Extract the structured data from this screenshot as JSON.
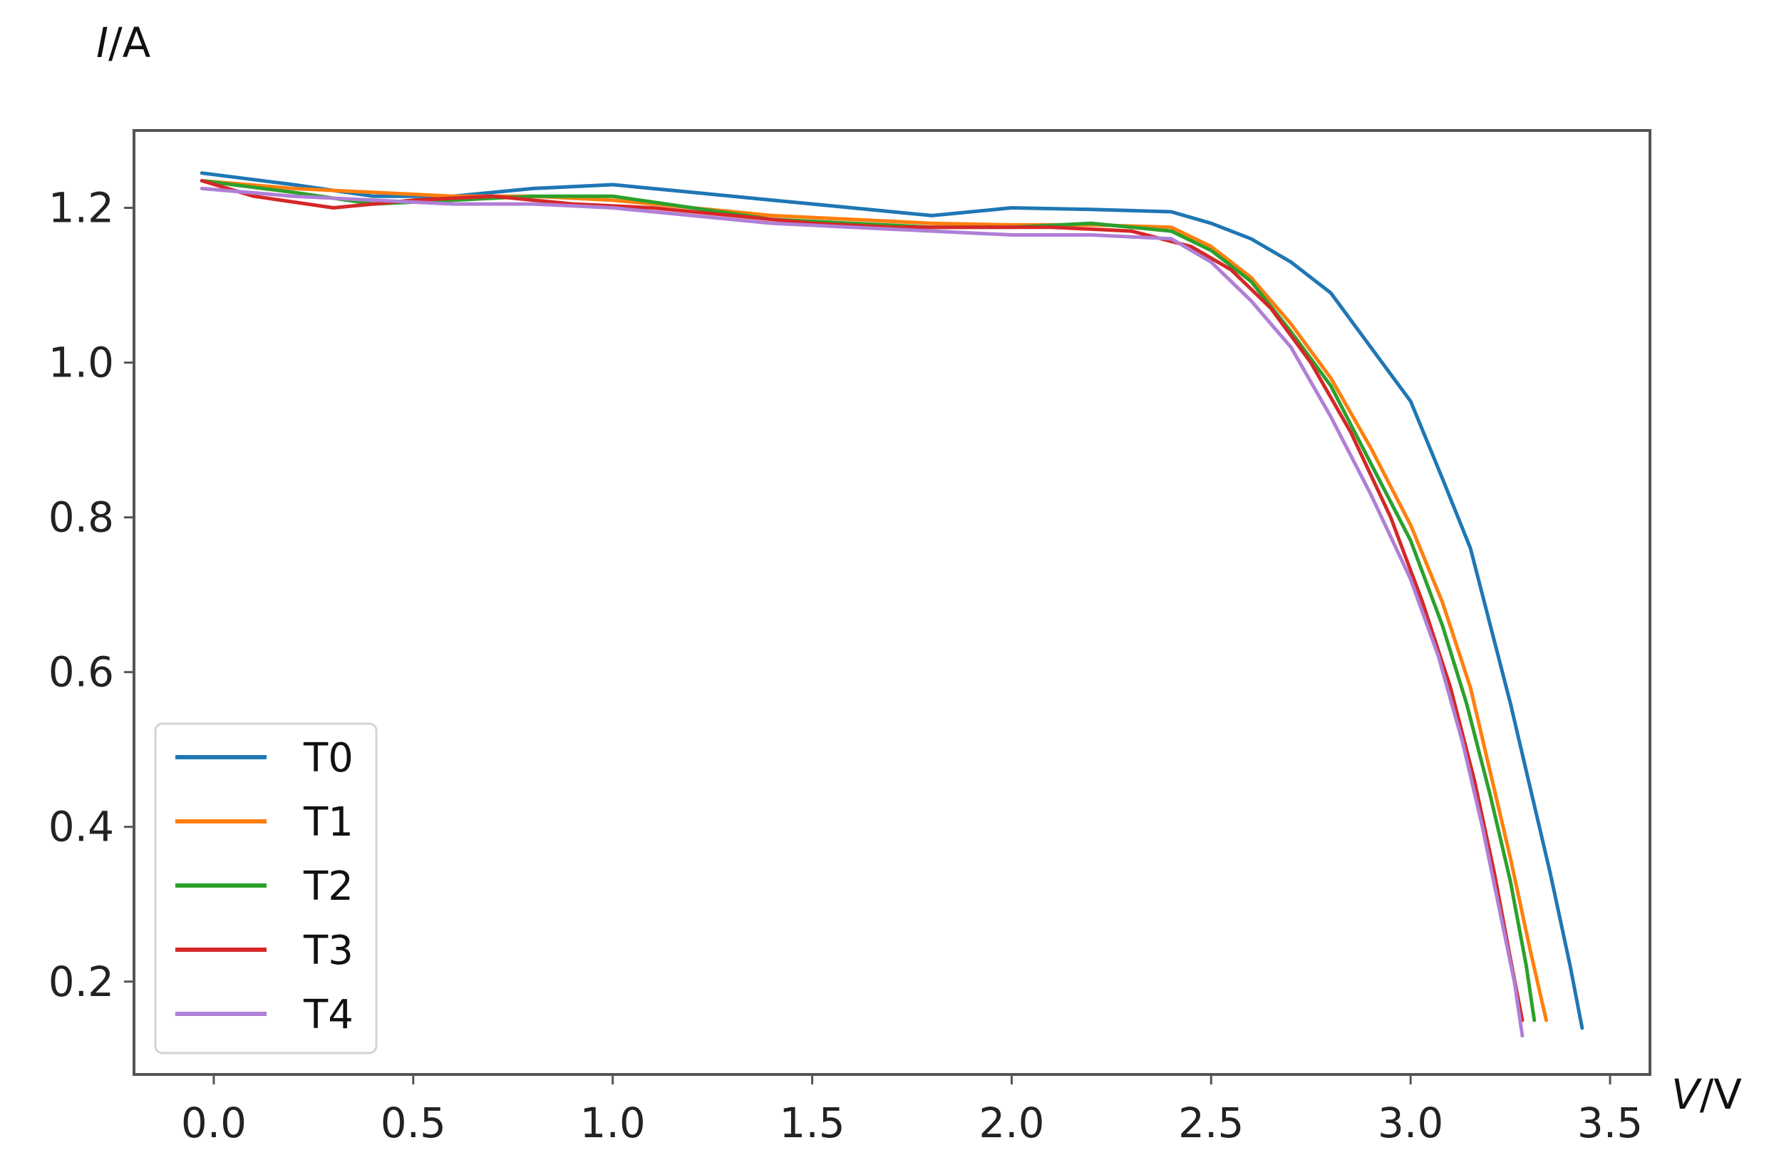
{
  "chart_data": {
    "type": "line",
    "title": "",
    "xlabel": {
      "symbol": "V",
      "unit": "/V"
    },
    "ylabel": {
      "symbol": "I",
      "unit": "/A"
    },
    "xlim": [
      -0.2,
      3.6
    ],
    "ylim": [
      0.08,
      1.3
    ],
    "xticks": [
      0.0,
      0.5,
      1.0,
      1.5,
      2.0,
      2.5,
      3.0,
      3.5
    ],
    "xtick_labels": [
      "0.0",
      "0.5",
      "1.0",
      "1.5",
      "2.0",
      "2.5",
      "3.0",
      "3.5"
    ],
    "yticks": [
      0.2,
      0.4,
      0.6,
      0.8,
      1.0,
      1.2
    ],
    "ytick_labels": [
      "0.2",
      "0.4",
      "0.6",
      "0.8",
      "1.0",
      "1.2"
    ],
    "grid": false,
    "legend_position": "lower-left",
    "series": [
      {
        "name": "T0",
        "color": "#1f77b4",
        "x": [
          -0.03,
          0.2,
          0.4,
          0.6,
          0.8,
          1.0,
          1.2,
          1.4,
          1.6,
          1.8,
          2.0,
          2.2,
          2.4,
          2.5,
          2.6,
          2.7,
          2.8,
          2.9,
          3.0,
          3.08,
          3.15,
          3.2,
          3.25,
          3.3,
          3.35,
          3.4,
          3.43
        ],
        "y": [
          1.245,
          1.23,
          1.215,
          1.215,
          1.225,
          1.23,
          1.22,
          1.21,
          1.2,
          1.19,
          1.2,
          1.198,
          1.195,
          1.18,
          1.16,
          1.13,
          1.09,
          1.02,
          0.95,
          0.85,
          0.76,
          0.66,
          0.56,
          0.45,
          0.34,
          0.22,
          0.14
        ]
      },
      {
        "name": "T1",
        "color": "#ff7f0e",
        "x": [
          -0.03,
          0.2,
          0.4,
          0.6,
          0.8,
          1.0,
          1.2,
          1.4,
          1.6,
          1.8,
          2.0,
          2.2,
          2.4,
          2.5,
          2.6,
          2.7,
          2.8,
          2.9,
          3.0,
          3.08,
          3.15,
          3.2,
          3.25,
          3.3,
          3.34
        ],
        "y": [
          1.235,
          1.225,
          1.22,
          1.215,
          1.215,
          1.21,
          1.2,
          1.19,
          1.185,
          1.18,
          1.178,
          1.178,
          1.175,
          1.15,
          1.11,
          1.05,
          0.98,
          0.89,
          0.79,
          0.69,
          0.58,
          0.47,
          0.36,
          0.24,
          0.15
        ]
      },
      {
        "name": "T2",
        "color": "#2ca02c",
        "x": [
          -0.03,
          0.2,
          0.4,
          0.6,
          0.8,
          1.0,
          1.2,
          1.4,
          1.6,
          1.8,
          2.0,
          2.2,
          2.4,
          2.5,
          2.6,
          2.7,
          2.8,
          2.9,
          3.0,
          3.08,
          3.14,
          3.2,
          3.25,
          3.29,
          3.31
        ],
        "y": [
          1.235,
          1.22,
          1.205,
          1.21,
          1.215,
          1.215,
          1.2,
          1.185,
          1.18,
          1.175,
          1.175,
          1.18,
          1.17,
          1.145,
          1.105,
          1.04,
          0.97,
          0.87,
          0.77,
          0.66,
          0.56,
          0.44,
          0.33,
          0.22,
          0.15
        ]
      },
      {
        "name": "T3",
        "color": "#d62728",
        "x": [
          -0.03,
          0.1,
          0.3,
          0.5,
          0.7,
          0.9,
          1.1,
          1.3,
          1.5,
          1.7,
          1.9,
          2.1,
          2.3,
          2.45,
          2.55,
          2.65,
          2.75,
          2.85,
          2.95,
          3.03,
          3.1,
          3.16,
          3.21,
          3.25,
          3.28
        ],
        "y": [
          1.235,
          1.215,
          1.2,
          1.21,
          1.215,
          1.205,
          1.2,
          1.19,
          1.18,
          1.175,
          1.175,
          1.175,
          1.17,
          1.15,
          1.12,
          1.07,
          1.0,
          0.91,
          0.8,
          0.69,
          0.58,
          0.46,
          0.34,
          0.23,
          0.15
        ]
      },
      {
        "name": "T4",
        "color": "#b07fd6",
        "x": [
          -0.03,
          0.2,
          0.4,
          0.6,
          0.8,
          1.0,
          1.2,
          1.4,
          1.6,
          1.8,
          2.0,
          2.2,
          2.4,
          2.5,
          2.6,
          2.7,
          2.8,
          2.9,
          3.0,
          3.07,
          3.13,
          3.18,
          3.22,
          3.26,
          3.28
        ],
        "y": [
          1.225,
          1.215,
          1.21,
          1.205,
          1.205,
          1.2,
          1.19,
          1.18,
          1.175,
          1.17,
          1.165,
          1.165,
          1.16,
          1.13,
          1.08,
          1.02,
          0.93,
          0.83,
          0.72,
          0.62,
          0.51,
          0.4,
          0.3,
          0.2,
          0.13
        ]
      }
    ]
  }
}
